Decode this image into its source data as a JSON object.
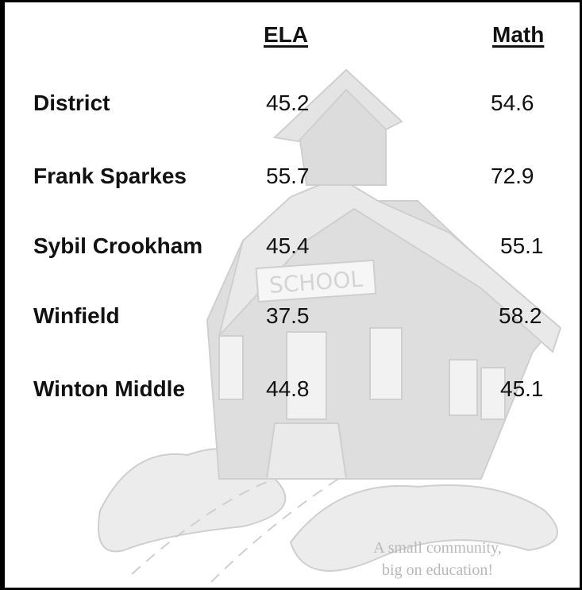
{
  "table": {
    "columns": [
      "ELA",
      "Math"
    ],
    "rows": [
      [
        "District",
        45.2,
        54.6
      ],
      [
        "Frank Sparkes",
        55.7,
        72.9
      ],
      [
        "Sybil Crookham",
        45.4,
        55.1
      ],
      [
        "Winfield",
        37.5,
        58.2
      ],
      [
        "Winton Middle",
        44.8,
        45.1
      ]
    ]
  },
  "illustration": {
    "sign": "SCHOOL"
  },
  "footer": {
    "tagline": [
      "A small community,",
      "big on education!"
    ]
  }
}
